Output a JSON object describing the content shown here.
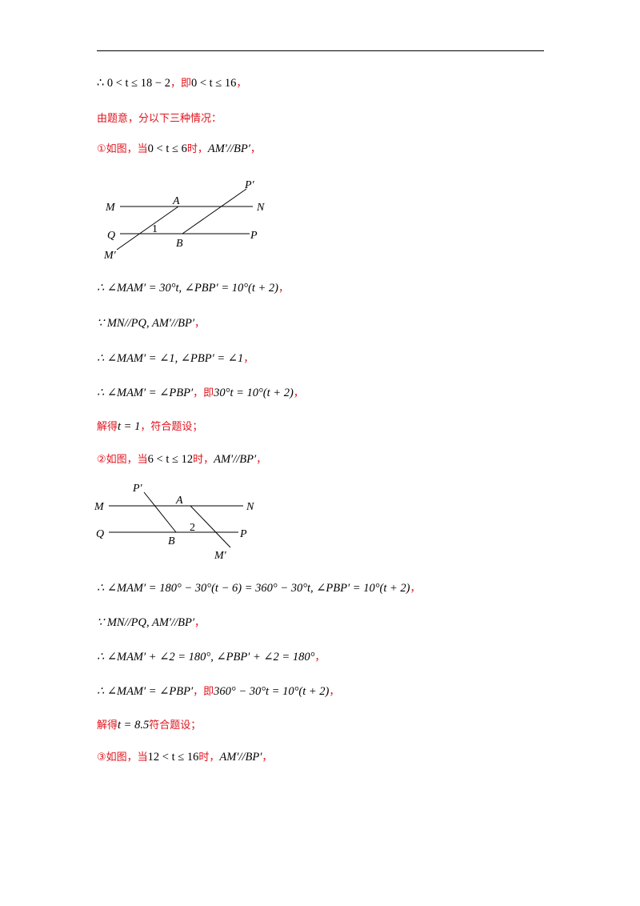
{
  "lines": {
    "l1": {
      "math1": "∴ 0 < t ≤ 18 − 2",
      "red1": "，即",
      "math2": "0 < t ≤ 16",
      "red2": "，"
    },
    "l2": {
      "red1": "由题意，分以下三种情况："
    },
    "l3": {
      "red1": "①如图，当",
      "math1": "0 < t ≤ 6",
      "red2": "时，",
      "math2": "AM′//BP′",
      "red3": "，"
    },
    "l4": {
      "math1": "∴ ∠MAM′ = 30°t, ∠PBP′ = 10°(t + 2)",
      "red1": "，"
    },
    "l5": {
      "math1": "∵ MN//PQ, AM′//BP′",
      "red1": "，"
    },
    "l6": {
      "math1": "∴ ∠MAM′ = ∠1, ∠PBP′ = ∠1",
      "red1": "，"
    },
    "l7": {
      "math1": "∴ ∠MAM′ = ∠PBP′",
      "red1": "，即",
      "math2": "30°t = 10°(t + 2)",
      "red2": "，"
    },
    "l8": {
      "red1": "解得",
      "math1": "t = 1",
      "red2": "，符合题设；"
    },
    "l9": {
      "red1": "②如图，当",
      "math1": "6 < t ≤ 12",
      "red2": "时，",
      "math2": "AM′//BP′",
      "red3": "，"
    },
    "l10": {
      "math1": "∴ ∠MAM′ = 180° − 30°(t − 6) = 360° − 30°t, ∠PBP′ = 10°(t + 2)",
      "red1": "，"
    },
    "l11": {
      "math1": "∵ MN//PQ, AM′//BP′",
      "red1": "，"
    },
    "l12": {
      "math1": "∴ ∠MAM′ + ∠2 = 180°, ∠PBP′ + ∠2 = 180°",
      "red1": "，"
    },
    "l13": {
      "math1": "∴ ∠MAM′ = ∠PBP′",
      "red1": "，即",
      "math2": "360° − 30°t = 10°(t + 2)",
      "red2": "，"
    },
    "l14": {
      "red1": "解得",
      "math1": "t = 8.5",
      "red2": "符合题设；"
    },
    "l15": {
      "red1": "③如图，当",
      "math1": "12 < t ≤ 16",
      "red2": "时，",
      "math2": "AM′//BP′",
      "red3": "，"
    }
  },
  "figure1": {
    "labels": {
      "P_prime": "P′",
      "M": "M",
      "A": "A",
      "N": "N",
      "Q": "Q",
      "one": "1",
      "B": "B",
      "P": "P",
      "M_prime": "M′"
    }
  },
  "figure2": {
    "labels": {
      "P_prime": "P′",
      "M": "M",
      "A": "A",
      "N": "N",
      "two": "2",
      "Q": "Q",
      "B": "B",
      "P": "P",
      "M_prime": "M′"
    }
  }
}
